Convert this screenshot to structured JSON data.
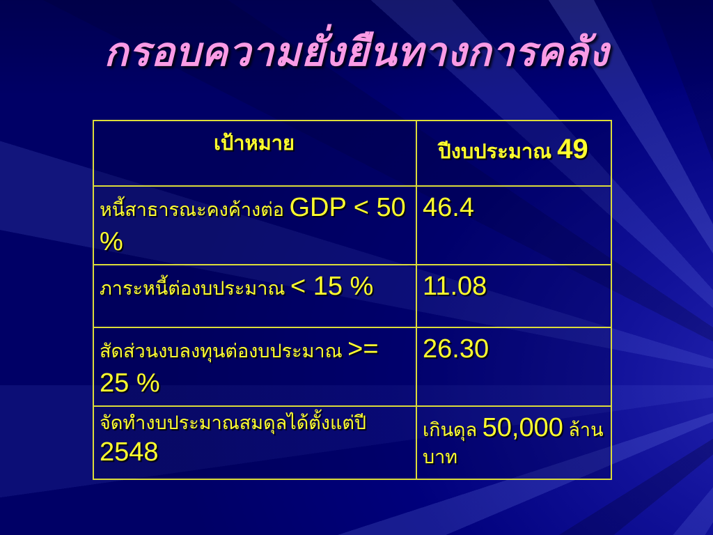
{
  "slide": {
    "title": "กรอบความยั่งยืนทางการคลัง",
    "colors": {
      "background_blue": "#00007B",
      "ray_highlight_blue": "#2626B2",
      "title_pink": "#FA9BE5",
      "table_text_yellow": "#FFFF2E",
      "table_border_yellow": "#DCDC3A"
    },
    "table": {
      "header": {
        "goal_label": "เป้าหมาย",
        "fiscal_year_label": "ปีงบประมาณ ",
        "fiscal_year_value": "49"
      },
      "rows": [
        {
          "label_small": "หนี้สาธารณะคงค้างต่อ ",
          "label_large": "GDP < 50 %",
          "value_large": "46.4"
        },
        {
          "label_small": "ภาระหนี้ต่องบประมาณ ",
          "label_large": "< 15 %",
          "value_large": "11.08"
        },
        {
          "label_small": "สัดส่วนงบลงทุนต่องบประมาณ ",
          "label_large": ">= 25 %",
          "value_large": "26.30"
        },
        {
          "label_small": "จัดทำงบประมาณสมดุลได้ตั้งแต่ปี ",
          "label_large": "2548",
          "value_small_prefix": "เกินดุล ",
          "value_large": "50,000",
          "value_small_suffix": " ล้านบาท"
        }
      ]
    }
  }
}
